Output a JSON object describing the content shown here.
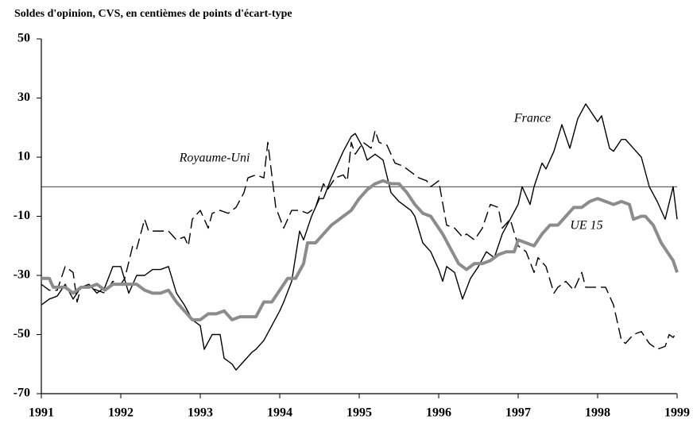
{
  "chart_data": {
    "type": "line",
    "title": "Soldes d'opinion, CVS, en centièmes de points d'écart-type",
    "xlim": [
      1991,
      1999
    ],
    "xticks": [
      1991,
      1992,
      1993,
      1994,
      1995,
      1996,
      1997,
      1998,
      1999
    ],
    "ylim": [
      -70,
      50
    ],
    "yticks": [
      -70,
      -50,
      -30,
      -10,
      10,
      30,
      50
    ],
    "reference_line": 0,
    "series": [
      {
        "name": "France",
        "color": "#000000",
        "style": "solid",
        "x": [
          1991,
          1991.1,
          1991.2,
          1991.3,
          1991.4,
          1991.5,
          1991.6,
          1991.7,
          1991.8,
          1991.9,
          1992,
          1992.1,
          1992.2,
          1992.3,
          1992.4,
          1992.5,
          1992.6,
          1992.7,
          1992.8,
          1992.9,
          1993,
          1993.05,
          1993.15,
          1993.25,
          1993.3,
          1993.4,
          1993.45,
          1993.55,
          1993.65,
          1993.7,
          1993.8,
          1993.9,
          1994,
          1994.05,
          1994.15,
          1994.25,
          1994.3,
          1994.4,
          1994.5,
          1994.55,
          1994.65,
          1994.7,
          1994.8,
          1994.9,
          1994.95,
          1995.05,
          1995.1,
          1995.2,
          1995.3,
          1995.4,
          1995.5,
          1995.55,
          1995.65,
          1995.7,
          1995.8,
          1995.9,
          1996,
          1996.05,
          1996.1,
          1996.2,
          1996.3,
          1996.4,
          1996.5,
          1996.6,
          1996.7,
          1996.8,
          1996.9,
          1997,
          1997.05,
          1997.15,
          1997.2,
          1997.3,
          1997.35,
          1997.45,
          1997.55,
          1997.65,
          1997.75,
          1997.85,
          1997.9,
          1998,
          1998.05,
          1998.15,
          1998.2,
          1998.3,
          1998.35,
          1998.45,
          1998.55,
          1998.65,
          1998.75,
          1998.85,
          1998.95,
          1999
        ],
        "values": [
          -40,
          -38,
          -37,
          -33,
          -38,
          -34,
          -33,
          -36,
          -34,
          -27,
          -27,
          -36,
          -30,
          -30,
          -28,
          -28,
          -27,
          -36,
          -40,
          -45,
          -47,
          -55,
          -50,
          -50,
          -58,
          -60,
          -62,
          -59,
          -56,
          -55,
          -52,
          -47,
          -42,
          -39,
          -32,
          -15,
          -18,
          -10,
          -4,
          -4,
          3,
          6,
          12,
          17,
          18,
          13,
          9,
          11,
          9,
          -2,
          -5,
          -6,
          -8,
          -10,
          -19,
          -22,
          -28,
          -32,
          -27,
          -29,
          -38,
          -31,
          -27,
          -22,
          -24,
          -16,
          -11,
          -6,
          0,
          -6,
          0,
          8,
          6,
          12,
          21,
          13,
          23,
          28,
          26,
          22,
          24,
          13,
          12,
          16,
          16,
          13,
          10,
          0,
          -5,
          -11,
          0,
          -11
        ]
      },
      {
        "name": "Royaume-Uni",
        "color": "#000000",
        "style": "dashed",
        "x": [
          1991,
          1991.1,
          1991.2,
          1991.3,
          1991.4,
          1991.45,
          1991.5,
          1991.6,
          1991.7,
          1991.8,
          1991.9,
          1992,
          1992.05,
          1992.15,
          1992.2,
          1992.3,
          1992.35,
          1992.5,
          1992.6,
          1992.7,
          1992.8,
          1992.85,
          1992.9,
          1993,
          1993.1,
          1993.15,
          1993.25,
          1993.35,
          1993.45,
          1993.55,
          1993.6,
          1993.7,
          1993.8,
          1993.85,
          1993.95,
          1994.05,
          1994.15,
          1994.25,
          1994.35,
          1994.45,
          1994.55,
          1994.6,
          1994.7,
          1994.8,
          1994.85,
          1994.9,
          1994.95,
          1995.05,
          1995.15,
          1995.2,
          1995.25,
          1995.35,
          1995.45,
          1995.55,
          1995.65,
          1995.75,
          1995.85,
          1995.9,
          1996,
          1996.1,
          1996.2,
          1996.3,
          1996.35,
          1996.45,
          1996.55,
          1996.65,
          1996.75,
          1996.8,
          1996.9,
          1997,
          1997.1,
          1997.2,
          1997.25,
          1997.35,
          1997.45,
          1997.5,
          1997.6,
          1997.7,
          1997.8,
          1997.85,
          1998,
          1998.1,
          1998.2,
          1998.3,
          1998.35,
          1998.45,
          1998.55,
          1998.65,
          1998.75,
          1998.85,
          1998.9,
          1998.95,
          1999
        ],
        "values": [
          -33,
          -35,
          -35,
          -27,
          -29,
          -39,
          -34,
          -34,
          -35,
          -36,
          -32,
          -33,
          -31,
          -20,
          -21,
          -11,
          -15,
          -15,
          -15,
          -18,
          -17,
          -20,
          -11,
          -8,
          -14,
          -9,
          -8,
          -9,
          -7,
          -2,
          3,
          4,
          3,
          15,
          -7,
          -14,
          -8,
          -8,
          -9,
          -7,
          1,
          -1,
          3,
          4,
          2,
          15,
          11,
          15,
          13,
          19,
          15,
          14,
          8,
          7,
          5,
          3,
          2,
          0,
          2,
          -13,
          -14,
          -17,
          -16,
          -18,
          -14,
          -6,
          -7,
          -14,
          -11,
          -20,
          -22,
          -29,
          -24,
          -27,
          -36,
          -34,
          -32,
          -35,
          -29,
          -34,
          -34,
          -34,
          -40,
          -52,
          -53,
          -50,
          -49,
          -53,
          -55,
          -54,
          -50,
          -51,
          -49
        ]
      },
      {
        "name": "UE 15",
        "color": "#8c8c8c",
        "style": "thick",
        "x": [
          1991,
          1991.1,
          1991.15,
          1991.3,
          1991.4,
          1991.5,
          1991.6,
          1991.7,
          1991.8,
          1991.9,
          1992,
          1992.2,
          1992.3,
          1992.4,
          1992.5,
          1992.6,
          1992.7,
          1992.8,
          1992.9,
          1993,
          1993.1,
          1993.2,
          1993.3,
          1993.4,
          1993.5,
          1993.6,
          1993.7,
          1993.8,
          1993.9,
          1994,
          1994.1,
          1994.2,
          1994.3,
          1994.35,
          1994.45,
          1994.55,
          1994.65,
          1994.75,
          1994.85,
          1994.9,
          1995,
          1995.1,
          1995.2,
          1995.3,
          1995.4,
          1995.5,
          1995.6,
          1995.7,
          1995.8,
          1995.9,
          1996,
          1996.05,
          1996.15,
          1996.25,
          1996.35,
          1996.45,
          1996.55,
          1996.65,
          1996.75,
          1996.85,
          1996.95,
          1997,
          1997.1,
          1997.2,
          1997.3,
          1997.4,
          1997.5,
          1997.6,
          1997.7,
          1997.8,
          1997.9,
          1998,
          1998.1,
          1998.2,
          1998.3,
          1998.4,
          1998.45,
          1998.55,
          1998.6,
          1998.7,
          1998.8,
          1998.9,
          1998.95,
          1999
        ],
        "values": [
          -31,
          -31,
          -34,
          -34,
          -36,
          -34,
          -34,
          -33,
          -35,
          -33,
          -33,
          -33,
          -35,
          -36,
          -36,
          -35,
          -39,
          -42,
          -45,
          -45,
          -43,
          -43,
          -42,
          -45,
          -44,
          -44,
          -44,
          -39,
          -39,
          -35,
          -31,
          -31,
          -26,
          -19,
          -19,
          -16,
          -13,
          -11,
          -9,
          -8,
          -4,
          -1,
          1,
          2,
          1,
          1,
          -2,
          -6,
          -9,
          -10,
          -14,
          -16,
          -21,
          -26,
          -28,
          -26,
          -26,
          -25,
          -23,
          -22,
          -22,
          -18,
          -19,
          -20,
          -16,
          -13,
          -13,
          -10,
          -7,
          -7,
          -5,
          -4,
          -5,
          -6,
          -5,
          -6,
          -11,
          -10,
          -10,
          -13,
          -19,
          -23,
          -25,
          -29
        ]
      }
    ]
  }
}
